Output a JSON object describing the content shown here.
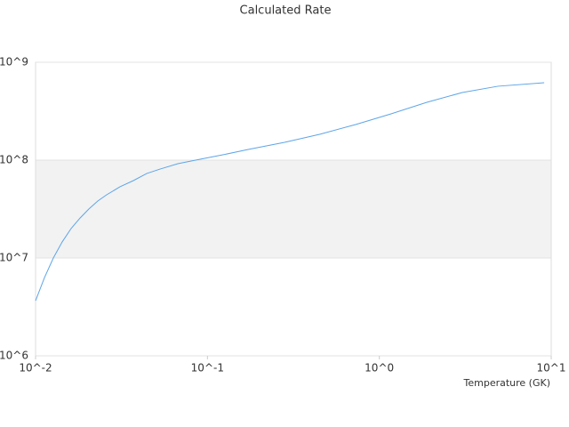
{
  "chart_data": {
    "type": "line",
    "title": "Calculated Rate",
    "x_label": "Temperature (GK)",
    "x": [
      0.01,
      0.01127,
      0.01269,
      0.01429,
      0.0161,
      0.01815,
      0.0204,
      0.023,
      0.0259,
      0.031,
      0.0371,
      0.0443,
      0.053,
      0.0673,
      0.0853,
      0.122,
      0.174,
      0.281,
      0.452,
      0.728,
      1.17,
      1.89,
      3.04,
      4.9,
      9.1
    ],
    "series": [
      {
        "color": "#5da5e8",
        "values": [
          3660000,
          6300000,
          10000000,
          14600000,
          20000000,
          25600000,
          31600000,
          38200000,
          44200000,
          53400000,
          61800000,
          73000000,
          81000000,
          92000000,
          100000000,
          113000000,
          129000000,
          152000000,
          184000000,
          231000000,
          297000000,
          390000000,
          491000000,
          569000000,
          618000000
        ]
      }
    ],
    "xlim": [
      0.01,
      10
    ],
    "ylim": [
      1000000,
      1000000000
    ],
    "xticks": [
      {
        "value": 0.01,
        "label": "10^-2"
      },
      {
        "value": 0.1,
        "label": "10^-1"
      },
      {
        "value": 1,
        "label": "10^0"
      },
      {
        "value": 10,
        "label": "10^1"
      }
    ],
    "yticks": [
      {
        "value": 1000000,
        "label": "10^6"
      },
      {
        "value": 10000000,
        "label": "10^7"
      },
      {
        "value": 100000000,
        "label": "10^8"
      },
      {
        "value": 1000000000,
        "label": "10^9"
      }
    ],
    "xlog": true,
    "ylog": true,
    "band_color": "#f2f2f2"
  }
}
